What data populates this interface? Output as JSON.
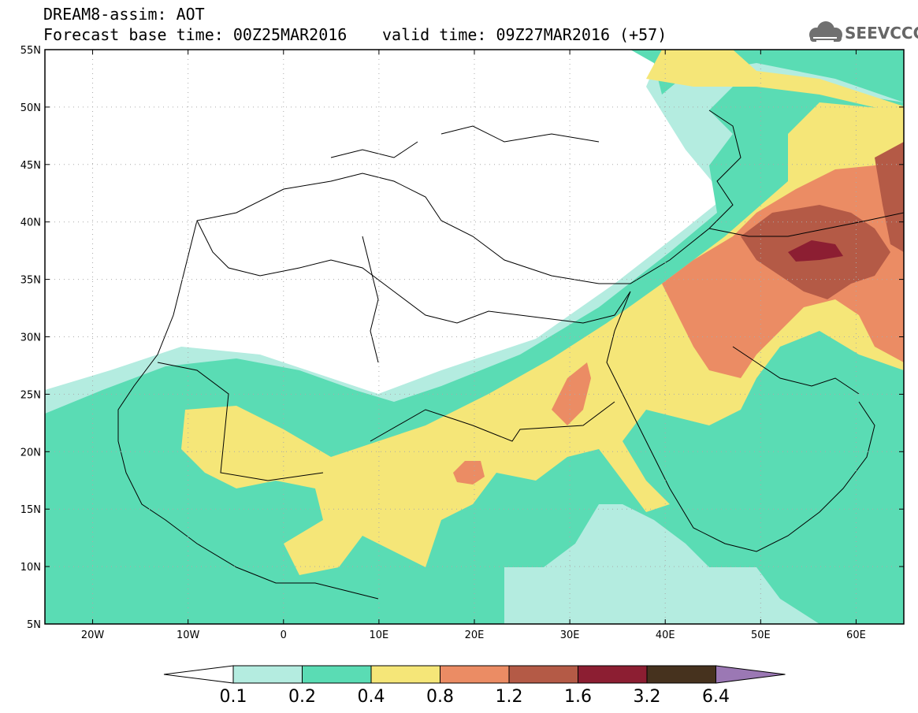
{
  "header": {
    "line1": "DREAM8-assim: AOT",
    "line2": "Forecast base time: 00Z25MAR2016",
    "line3": "valid time: 09Z27MAR2016 (+57)",
    "logo_text": "SEEVCCC"
  },
  "map": {
    "lon_range": [
      -25,
      65
    ],
    "lat_range": [
      5,
      55
    ],
    "lat_ticks": [
      "55N",
      "50N",
      "45N",
      "40N",
      "35N",
      "30N",
      "25N",
      "20N",
      "15N",
      "10N",
      "5N"
    ],
    "lon_ticks": [
      "20W",
      "10W",
      "0",
      "10E",
      "20E",
      "30E",
      "40E",
      "50E",
      "60E"
    ],
    "grid": "dotted"
  },
  "colorbar": {
    "labels": [
      "0.1",
      "0.2",
      "0.4",
      "0.8",
      "1.2",
      "1.6",
      "3.2",
      "6.4"
    ],
    "colors": [
      "#ffffff",
      "#b4ece0",
      "#5adcb4",
      "#f5e678",
      "#eb8c64",
      "#b45a46",
      "#8c1e32",
      "#46321e",
      "#9b78b4"
    ]
  }
}
